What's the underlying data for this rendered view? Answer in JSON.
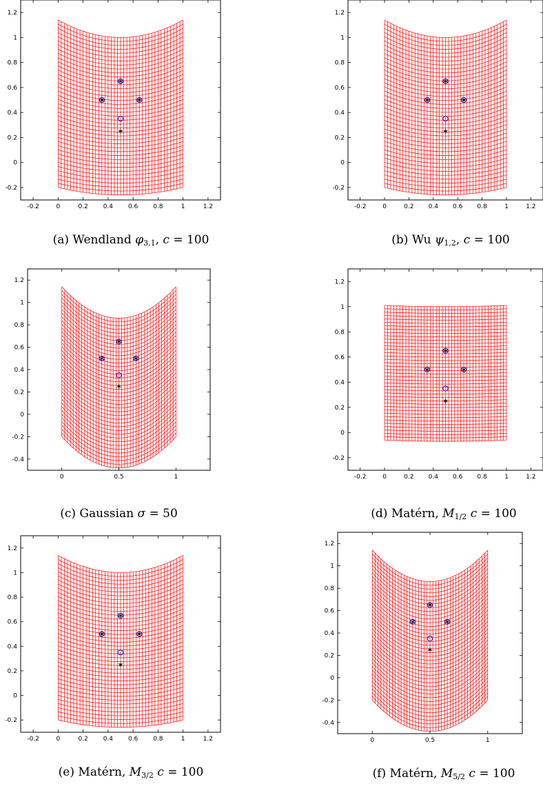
{
  "figures": [
    {
      "id": "a",
      "caption": {
        "label": "(a)",
        "name": "Wendland",
        "symbol": "φ",
        "sub": "3,1",
        "param": "c",
        "value": "100"
      },
      "chart_data": {
        "type": "deformation-grid",
        "xlim": [
          -0.3,
          1.3
        ],
        "ylim": [
          -0.3,
          1.3
        ],
        "xticks": [
          -0.2,
          0,
          0.2,
          0.4,
          0.6,
          0.8,
          1,
          1.2
        ],
        "yticks": [
          -0.2,
          0,
          0.2,
          0.4,
          0.6,
          0.8,
          1,
          1.2
        ],
        "grid_top": {
          "edge_y": 1.14,
          "center_y": 1.0
        },
        "grid_bottom": {
          "edge_y": -0.2,
          "center_y": -0.26
        },
        "grid_x": [
          0,
          1
        ],
        "source_points": [
          [
            0.5,
            0.65
          ],
          [
            0.35,
            0.5
          ],
          [
            0.65,
            0.5
          ],
          [
            0.5,
            0.25
          ]
        ],
        "target_points": [
          [
            0.5,
            0.65
          ],
          [
            0.35,
            0.5
          ],
          [
            0.65,
            0.5
          ],
          [
            0.5,
            0.35
          ]
        ]
      }
    },
    {
      "id": "b",
      "caption": {
        "label": "(b)",
        "name": "Wu",
        "symbol": "ψ",
        "sub": "1,2",
        "param": "c",
        "value": "100"
      },
      "chart_data": {
        "type": "deformation-grid",
        "xlim": [
          -0.3,
          1.3
        ],
        "ylim": [
          -0.3,
          1.3
        ],
        "xticks": [
          -0.2,
          0,
          0.2,
          0.4,
          0.6,
          0.8,
          1,
          1.2
        ],
        "yticks": [
          -0.2,
          0,
          0.2,
          0.4,
          0.6,
          0.8,
          1,
          1.2
        ],
        "grid_top": {
          "edge_y": 1.14,
          "center_y": 1.0
        },
        "grid_bottom": {
          "edge_y": -0.2,
          "center_y": -0.26
        },
        "grid_x": [
          0,
          1
        ],
        "source_points": [
          [
            0.5,
            0.65
          ],
          [
            0.35,
            0.5
          ],
          [
            0.65,
            0.5
          ],
          [
            0.5,
            0.25
          ]
        ],
        "target_points": [
          [
            0.5,
            0.65
          ],
          [
            0.35,
            0.5
          ],
          [
            0.65,
            0.5
          ],
          [
            0.5,
            0.35
          ]
        ]
      }
    },
    {
      "id": "c",
      "caption": {
        "label": "(c)",
        "name": "Gaussian",
        "symbol": "σ",
        "sub": "",
        "param": "",
        "value": "50"
      },
      "chart_data": {
        "type": "deformation-grid",
        "xlim": [
          -0.3,
          1.3
        ],
        "ylim": [
          -0.5,
          1.3
        ],
        "xticks": [
          0,
          0.5,
          1
        ],
        "yticks": [
          -0.4,
          -0.2,
          0,
          0.2,
          0.4,
          0.6,
          0.8,
          1,
          1.2
        ],
        "grid_top": {
          "edge_y": 1.14,
          "center_y": 0.86
        },
        "grid_bottom": {
          "edge_y": -0.2,
          "center_y": -0.48
        },
        "grid_x": [
          0,
          1
        ],
        "source_points": [
          [
            0.5,
            0.65
          ],
          [
            0.35,
            0.5
          ],
          [
            0.65,
            0.5
          ],
          [
            0.5,
            0.25
          ]
        ],
        "target_points": [
          [
            0.5,
            0.65
          ],
          [
            0.35,
            0.5
          ],
          [
            0.65,
            0.5
          ],
          [
            0.5,
            0.35
          ]
        ]
      }
    },
    {
      "id": "d",
      "caption": {
        "label": "(d)",
        "name": "Matérn,",
        "symbol": "M",
        "sub": "1/2",
        "param": "c",
        "value": "100"
      },
      "chart_data": {
        "type": "deformation-grid",
        "xlim": [
          -0.3,
          1.3
        ],
        "ylim": [
          -0.3,
          1.3
        ],
        "xticks": [
          -0.2,
          0,
          0.2,
          0.4,
          0.6,
          0.8,
          1,
          1.2
        ],
        "yticks": [
          -0.2,
          0,
          0.2,
          0.4,
          0.6,
          0.8,
          1,
          1.2
        ],
        "grid_top": {
          "edge_y": 1.01,
          "center_y": 1.0
        },
        "grid_bottom": {
          "edge_y": -0.06,
          "center_y": -0.07
        },
        "grid_x": [
          0,
          1
        ],
        "source_points": [
          [
            0.5,
            0.65
          ],
          [
            0.35,
            0.5
          ],
          [
            0.65,
            0.5
          ],
          [
            0.5,
            0.25
          ]
        ],
        "target_points": [
          [
            0.5,
            0.65
          ],
          [
            0.35,
            0.5
          ],
          [
            0.65,
            0.5
          ],
          [
            0.5,
            0.35
          ]
        ]
      }
    },
    {
      "id": "e",
      "caption": {
        "label": "(e)",
        "name": "Matérn,",
        "symbol": "M",
        "sub": "3/2",
        "param": "c",
        "value": "100"
      },
      "chart_data": {
        "type": "deformation-grid",
        "xlim": [
          -0.3,
          1.3
        ],
        "ylim": [
          -0.3,
          1.3
        ],
        "xticks": [
          -0.2,
          0,
          0.2,
          0.4,
          0.6,
          0.8,
          1,
          1.2
        ],
        "yticks": [
          -0.2,
          0,
          0.2,
          0.4,
          0.6,
          0.8,
          1,
          1.2
        ],
        "grid_top": {
          "edge_y": 1.14,
          "center_y": 1.0
        },
        "grid_bottom": {
          "edge_y": -0.2,
          "center_y": -0.26
        },
        "grid_x": [
          0,
          1
        ],
        "source_points": [
          [
            0.5,
            0.65
          ],
          [
            0.35,
            0.5
          ],
          [
            0.65,
            0.5
          ],
          [
            0.5,
            0.25
          ]
        ],
        "target_points": [
          [
            0.5,
            0.65
          ],
          [
            0.35,
            0.5
          ],
          [
            0.65,
            0.5
          ],
          [
            0.5,
            0.35
          ]
        ]
      }
    },
    {
      "id": "f",
      "caption": {
        "label": "(f)",
        "name": "Matérn,",
        "symbol": "M",
        "sub": "5/2",
        "param": "c",
        "value": "100"
      },
      "chart_data": {
        "type": "deformation-grid",
        "xlim": [
          -0.3,
          1.3
        ],
        "ylim": [
          -0.5,
          1.3
        ],
        "xticks": [
          0,
          0.5,
          1
        ],
        "yticks": [
          -0.4,
          -0.2,
          0,
          0.2,
          0.4,
          0.6,
          0.8,
          1,
          1.2
        ],
        "grid_top": {
          "edge_y": 1.14,
          "center_y": 0.86
        },
        "grid_bottom": {
          "edge_y": -0.2,
          "center_y": -0.48
        },
        "grid_x": [
          0,
          1
        ],
        "source_points": [
          [
            0.5,
            0.65
          ],
          [
            0.35,
            0.5
          ],
          [
            0.65,
            0.5
          ],
          [
            0.5,
            0.25
          ]
        ],
        "target_points": [
          [
            0.5,
            0.65
          ],
          [
            0.35,
            0.5
          ],
          [
            0.65,
            0.5
          ],
          [
            0.5,
            0.35
          ]
        ]
      }
    }
  ],
  "colors": {
    "grid": "#ff0000",
    "source_marker": "#000000",
    "target_marker": "#4a28c8",
    "axis": "#000000"
  }
}
